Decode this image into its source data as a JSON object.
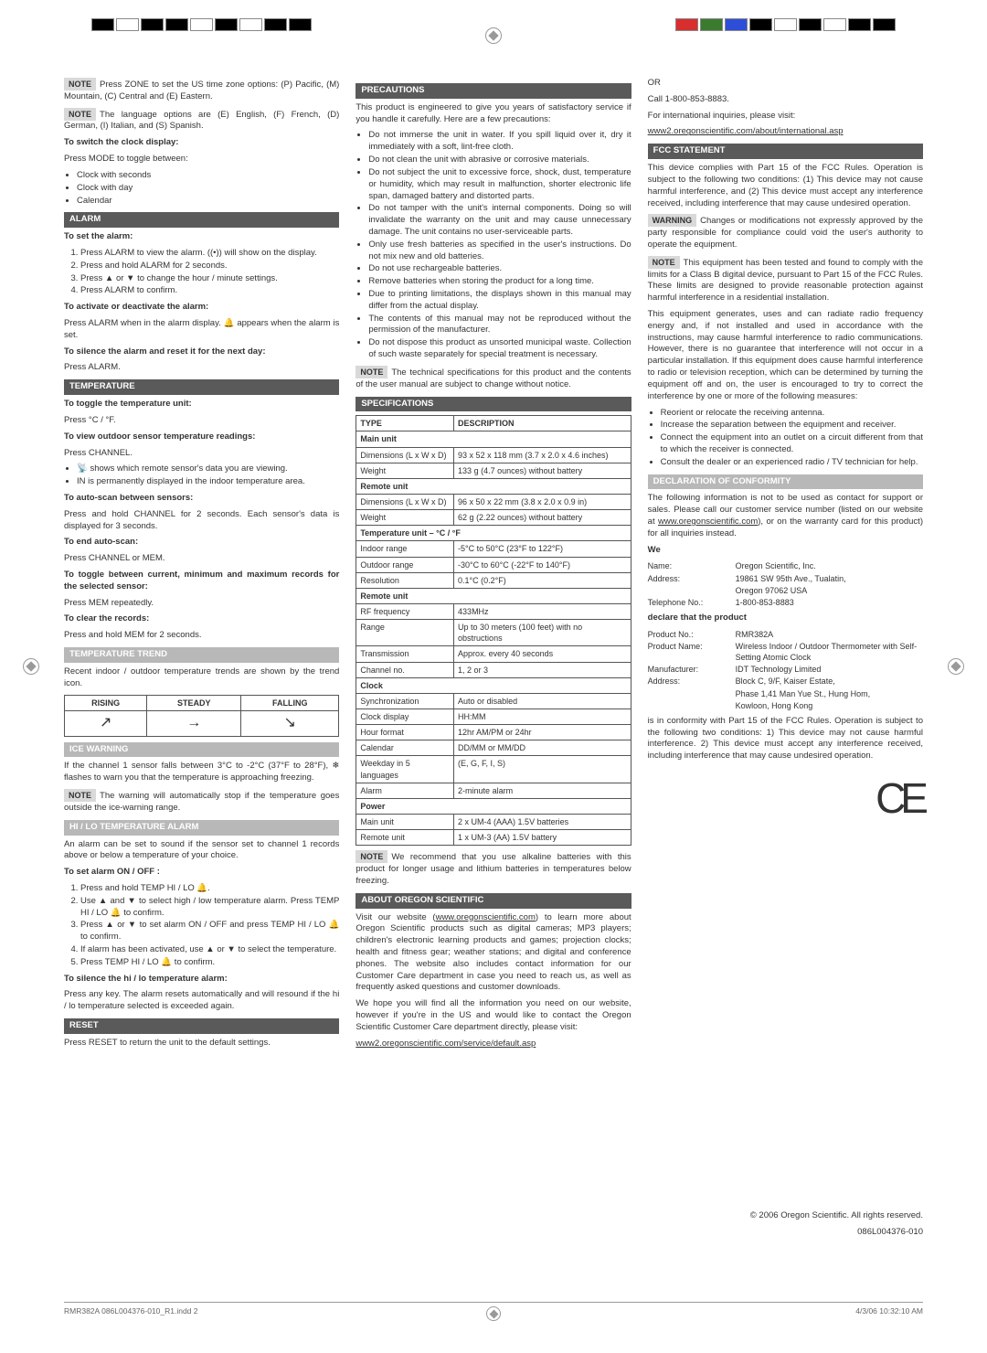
{
  "reg_colors_left": [
    "#000000",
    "#ffffff",
    "#000000",
    "#000000",
    "#ffffff",
    "#000000",
    "#ffffff",
    "#000000",
    "#000000"
  ],
  "reg_colors_right": [
    "#d82e2e",
    "#3a7b2e",
    "#2e4ed8",
    "#000000",
    "#ffffff",
    "#000000",
    "#ffffff",
    "#000000",
    "#000000"
  ],
  "col1": {
    "note1_label": "NOTE",
    "note1": "Press ZONE to set the US time zone options: (P) Pacific, (M) Mountain, (C) Central and (E) Eastern.",
    "note2_label": "NOTE",
    "note2": "The language options are (E) English, (F) French, (D) German, (I) Italian, and (S) Spanish.",
    "switch_title": "To switch the clock display:",
    "switch_lead": "Press MODE to toggle between:",
    "switch_items": [
      "Clock with seconds",
      "Clock with day",
      "Calendar"
    ],
    "alarm_header": "ALARM",
    "alarm_set_title": "To set the alarm:",
    "alarm_steps": [
      "Press ALARM to view the alarm. ((•)) will show on the display.",
      "Press and hold ALARM for 2 seconds.",
      "Press ▲ or ▼ to change the hour / minute settings.",
      "Press ALARM to confirm."
    ],
    "alarm_activate_title": "To activate or deactivate the alarm:",
    "alarm_activate_text": "Press ALARM when in the alarm display. 🔔 appears when the alarm is set.",
    "alarm_silence_title": "To silence the alarm and reset it for the next day:",
    "alarm_silence_text": "Press ALARM.",
    "temp_header": "TEMPERATURE",
    "temp_toggle_title": "To toggle the temperature unit:",
    "temp_toggle_text": "Press °C / °F.",
    "temp_view_title": "To view outdoor sensor temperature readings:",
    "temp_view_lead": "Press CHANNEL.",
    "temp_view_items": [
      "📡 shows which remote sensor's data you are viewing.",
      "IN is permanently displayed in the indoor temperature area."
    ],
    "autoscan_title": "To auto-scan between sensors:",
    "autoscan_text": "Press and hold CHANNEL for 2 seconds. Each sensor's data is displayed for 3 seconds.",
    "endauto_title": "To end auto-scan:",
    "endauto_text": "Press CHANNEL or MEM.",
    "togglerec_title": "To toggle between current, minimum and maximum records for the selected sensor:",
    "togglerec_text": "Press MEM repeatedly.",
    "clear_title": "To clear the records:",
    "clear_text": "Press and hold MEM for 2 seconds.",
    "trend_header": "TEMPERATURE TREND",
    "trend_text": "Recent indoor / outdoor temperature trends are shown by the trend icon.",
    "trend_cols": [
      "RISING",
      "STEADY",
      "FALLING"
    ],
    "trend_icons": [
      "↗",
      "→",
      "↘"
    ],
    "ice_header": "ICE WARNING",
    "ice_text": "If the channel 1 sensor falls between 3°C to -2°C (37°F to 28°F), ❄ flashes to warn you that the temperature is approaching freezing.",
    "ice_note_label": "NOTE",
    "ice_note": "The warning will automatically stop if the temperature goes outside the ice-warning range.",
    "hilo_header": "HI / LO TEMPERATURE ALARM",
    "hilo_intro": "An alarm can be set to sound if the sensor set to channel 1 records above or below a temperature of your choice.",
    "hilo_set_title": "To set alarm ON / OFF :",
    "hilo_steps": [
      "Press and hold TEMP HI / LO 🔔.",
      "Use ▲ and ▼ to select high / low temperature alarm. Press TEMP HI / LO 🔔 to confirm.",
      "Press ▲ or ▼ to set alarm ON / OFF and press TEMP HI / LO 🔔 to confirm.",
      "If alarm has been activated, use ▲ or ▼ to select the temperature.",
      "Press TEMP HI / LO 🔔 to confirm."
    ],
    "hilo_silence_title": "To silence the hi / lo temperature alarm:",
    "hilo_silence_text": "Press any key. The alarm resets automatically and will resound if the hi / lo temperature selected is exceeded again.",
    "reset_header": "RESET",
    "reset_text": "Press RESET to return the unit to the default settings."
  },
  "col2": {
    "prec_header": "PRECAUTIONS",
    "prec_intro": "This product is engineered to give you years of satisfactory service if you handle it carefully. Here are a few precautions:",
    "prec_items": [
      "Do not immerse the unit in water. If you spill liquid over it, dry it immediately with a soft, lint-free cloth.",
      "Do not clean the unit with abrasive or corrosive materials.",
      "Do not subject the unit to excessive force, shock, dust, temperature or humidity, which may result in malfunction, shorter electronic life span, damaged battery and distorted parts.",
      "Do not tamper with the unit's internal components. Doing so will invalidate the warranty on the unit and may cause unnecessary damage. The unit contains no user-serviceable parts.",
      "Only use fresh batteries as specified in the user's instructions. Do not mix new and old batteries.",
      "Do not use rechargeable batteries.",
      "Remove batteries when storing the product for a long time.",
      "Due to printing limitations, the displays shown in this manual may differ from the actual display.",
      "The contents of this manual may not be reproduced without the permission of the manufacturer.",
      "Do not dispose this product as unsorted municipal waste. Collection of such waste separately for special treatment is necessary."
    ],
    "prec_note_label": "NOTE",
    "prec_note": "The technical specifications for this product and the contents of the user manual are subject to change without notice.",
    "spec_header": "SPECIFICATIONS",
    "spec_type": "TYPE",
    "spec_desc": "DESCRIPTION",
    "spec_rows": [
      {
        "sub": "Main unit"
      },
      {
        "k": "Dimensions (L x W x D)",
        "v": "93 x 52 x 118 mm (3.7 x 2.0 x 4.6 inches)"
      },
      {
        "k": "Weight",
        "v": "133 g (4.7 ounces) without battery"
      },
      {
        "sub": "Remote unit"
      },
      {
        "k": "Dimensions (L x W x D)",
        "v": "96 x 50 x 22 mm (3.8 x 2.0 x 0.9 in)"
      },
      {
        "k": "Weight",
        "v": "62 g (2.22 ounces) without battery"
      },
      {
        "sub": "Temperature unit – °C / °F"
      },
      {
        "k": "Indoor range",
        "v": "-5°C to 50°C (23°F to 122°F)"
      },
      {
        "k": "Outdoor range",
        "v": "-30°C to 60°C (-22°F to 140°F)"
      },
      {
        "k": "Resolution",
        "v": "0.1°C (0.2°F)"
      },
      {
        "sub": "Remote unit"
      },
      {
        "k": "RF frequency",
        "v": "433MHz"
      },
      {
        "k": "Range",
        "v": "Up to 30 meters (100 feet) with no obstructions"
      },
      {
        "k": "Transmission",
        "v": "Approx. every 40 seconds"
      },
      {
        "k": "Channel no.",
        "v": "1, 2 or 3"
      },
      {
        "sub": "Clock"
      },
      {
        "k": "Synchronization",
        "v": "Auto or disabled"
      },
      {
        "k": "Clock display",
        "v": "HH:MM"
      },
      {
        "k": "Hour format",
        "v": "12hr AM/PM or 24hr"
      },
      {
        "k": "Calendar",
        "v": "DD/MM or MM/DD"
      },
      {
        "k": "Weekday in 5 languages",
        "v": "(E, G, F, I, S)"
      },
      {
        "k": "Alarm",
        "v": "2-minute alarm"
      },
      {
        "sub": "Power"
      },
      {
        "k": "Main unit",
        "v": "2 x UM-4 (AAA) 1.5V batteries"
      },
      {
        "k": "Remote unit",
        "v": "1 x UM-3 (AA) 1.5V battery"
      }
    ],
    "spec_note_label": "NOTE",
    "spec_note": "We recommend that you use alkaline batteries with this product for longer usage and lithium batteries in temperatures below freezing.",
    "about_header": "ABOUT OREGON SCIENTIFIC",
    "about_p1a": "Visit our website (",
    "about_link1": "www.oregonscientific.com",
    "about_p1b": ") to learn more about Oregon Scientific products such as digital cameras; MP3 players; children's electronic learning products and games; projection clocks; health and fitness gear; weather stations; and digital and conference phones. The website also includes contact information for our Customer Care department in case you need to reach us, as well as frequently asked questions and customer downloads.",
    "about_p2": "We hope you will find all the information you need on our website, however if you're in the US and would like to contact the Oregon Scientific Customer Care department directly, please visit:",
    "about_link2": "www2.oregonscientific.com/service/default.asp"
  },
  "col3": {
    "or": "OR",
    "call": "Call 1-800-853-8883.",
    "intl": "For international inquiries, please visit:",
    "intl_link": "www2.oregonscientific.com/about/international.asp",
    "fcc_header": "FCC STATEMENT",
    "fcc_p1": "This device complies with Part 15 of the FCC Rules. Operation is subject to the following two conditions: (1) This device may not cause harmful interference, and (2) This device must accept any interference received, including interference that may cause undesired operation.",
    "fcc_warn_label": "WARNING",
    "fcc_warn": "Changes or modifications not expressly approved by the party responsible for compliance could void the user's authority to operate the equipment.",
    "fcc_note_label": "NOTE",
    "fcc_note": "This equipment has been tested and found to comply with the limits for a Class B digital device, pursuant to Part 15 of the FCC Rules. These limits are designed to provide reasonable protection against harmful interference in a residential installation.",
    "fcc_p2": "This equipment generates, uses and can radiate radio frequency energy and, if not installed and used in accordance with the instructions, may cause harmful interference to radio communications. However, there is no guarantee that interference will not occur in a particular installation. If this equipment does cause harmful interference to radio or television reception, which can be determined by turning the equipment off and on, the user is encouraged to try to correct the interference by one or more of the following measures:",
    "fcc_items": [
      "Reorient or relocate the receiving antenna.",
      "Increase the separation between the equipment and receiver.",
      "Connect the equipment into an outlet on a circuit different from that to which the receiver is connected.",
      "Consult the dealer or an experienced radio / TV technician for help."
    ],
    "decl_header": "DECLARATION OF CONFORMITY",
    "decl_p1a": "The following information is not to be used as contact for support or sales. Please call our customer service number (listed on our website at ",
    "decl_link": "www.oregonscientific.com",
    "decl_p1b": "), or on the warranty card for this product) for all inquiries instead.",
    "we": "We",
    "contact1": [
      [
        "Name:",
        "Oregon Scientific, Inc."
      ],
      [
        "Address:",
        "19861 SW 95th Ave., Tualatin,"
      ],
      [
        "",
        "Oregon 97062 USA"
      ],
      [
        "Telephone No.:",
        "1-800-853-8883"
      ]
    ],
    "declare": "declare that the product",
    "contact2": [
      [
        "Product No.:",
        "RMR382A"
      ],
      [
        "Product Name:",
        "Wireless Indoor / Outdoor Thermometer with Self-Setting Atomic Clock"
      ],
      [
        "Manufacturer:",
        "IDT Technology Limited"
      ],
      [
        "Address:",
        "Block C, 9/F, Kaiser Estate,"
      ],
      [
        "",
        "Phase 1,41 Man Yue St., Hung Hom,"
      ],
      [
        "",
        "Kowloon, Hong Kong"
      ]
    ],
    "conform": "is in conformity with Part 15 of the FCC Rules.  Operation is subject to the following two conditions: 1) This device may not cause harmful interference. 2) This device must accept any interference received, including interference that may cause undesired operation.",
    "copyright1": "© 2006 Oregon Scientific. All rights reserved.",
    "copyright2": "086L004376-010"
  },
  "footer": {
    "left": "RMR382A 086L004376-010_R1.indd   2",
    "right": "4/3/06   10:32:10 AM"
  }
}
